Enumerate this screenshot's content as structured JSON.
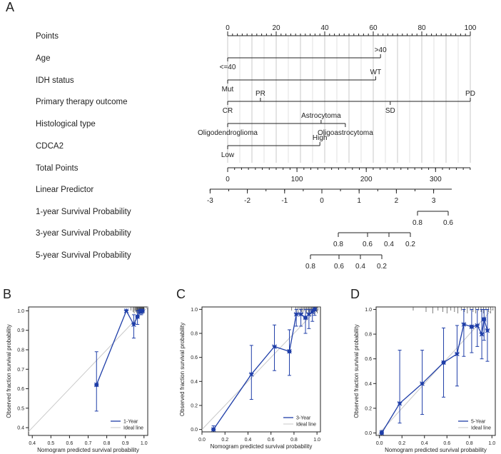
{
  "panel_labels": {
    "A": "A",
    "B": "B",
    "C": "C",
    "D": "D"
  },
  "chart_data": [
    {
      "type": "nomogram",
      "panel": "A",
      "rows": [
        {
          "label": "Points",
          "ticks": [
            {
              "v": 0,
              "t": "0"
            },
            {
              "v": 20,
              "t": "20"
            },
            {
              "v": 40,
              "t": "40"
            },
            {
              "v": 60,
              "t": "60"
            },
            {
              "v": 80,
              "t": "80"
            },
            {
              "v": 100,
              "t": "100"
            }
          ]
        },
        {
          "label": "Age",
          "levels": [
            {
              "pts": 0,
              "t": "<=40",
              "pos": "below"
            },
            {
              "pts": 63,
              "t": ">40",
              "pos": "above"
            }
          ]
        },
        {
          "label": "IDH status",
          "levels": [
            {
              "pts": 0,
              "t": "Mut",
              "pos": "below"
            },
            {
              "pts": 61,
              "t": "WT",
              "pos": "above"
            }
          ]
        },
        {
          "label": "Primary therapy outcome",
          "levels": [
            {
              "pts": 0,
              "t": "CR",
              "pos": "below"
            },
            {
              "pts": 13.5,
              "t": "PR",
              "pos": "above"
            },
            {
              "pts": 67,
              "t": "SD",
              "pos": "below"
            },
            {
              "pts": 100,
              "t": "PD",
              "pos": "above"
            }
          ]
        },
        {
          "label": "Histological type",
          "levels": [
            {
              "pts": 0,
              "t": "Oligodendroglioma",
              "pos": "below"
            },
            {
              "pts": 38.5,
              "t": "Astrocytoma",
              "pos": "above"
            },
            {
              "pts": 48.5,
              "t": "Oligoastrocytoma",
              "pos": "below"
            }
          ]
        },
        {
          "label": "CDCA2",
          "levels": [
            {
              "pts": 0,
              "t": "Low",
              "pos": "below"
            },
            {
              "pts": 38,
              "t": "High",
              "pos": "above"
            }
          ]
        },
        {
          "label": "Total Points",
          "ticks": [
            {
              "v": 0,
              "t": "0"
            },
            {
              "v": 100,
              "t": "100"
            },
            {
              "v": 200,
              "t": "200"
            },
            {
              "v": 300,
              "t": "300"
            }
          ]
        },
        {
          "label": "Linear Predictor",
          "ticks": [
            {
              "v": -3,
              "t": "-3"
            },
            {
              "v": -2,
              "t": "-2"
            },
            {
              "v": -1,
              "t": "-1"
            },
            {
              "v": 0,
              "t": "0"
            },
            {
              "v": 1,
              "t": "1"
            },
            {
              "v": 2,
              "t": "2"
            },
            {
              "v": 3,
              "t": "3"
            }
          ]
        },
        {
          "label": "1-year Survival Probability",
          "ticks": [
            {
              "v": 0.8,
              "t": "0.8"
            },
            {
              "v": 0.6,
              "t": "0.6"
            }
          ]
        },
        {
          "label": "3-year Survival Probability",
          "ticks": [
            {
              "v": 0.8,
              "t": "0.8"
            },
            {
              "v": 0.6,
              "t": "0.6"
            },
            {
              "v": 0.4,
              "t": "0.4"
            },
            {
              "v": 0.2,
              "t": "0.2"
            }
          ]
        },
        {
          "label": "5-year Survival Probability",
          "ticks": [
            {
              "v": 0.8,
              "t": "0.8"
            },
            {
              "v": 0.6,
              "t": "0.6"
            },
            {
              "v": 0.4,
              "t": "0.4"
            },
            {
              "v": 0.2,
              "t": "0.2"
            }
          ]
        }
      ]
    },
    {
      "type": "line",
      "panel": "B",
      "xlabel": "Nomogram predicted survival probability",
      "ylabel": "Observed fraction survival probability",
      "xlim": [
        0.38,
        1.02
      ],
      "ylim": [
        0.36,
        1.02
      ],
      "xticks": [
        "0.4",
        "0.5",
        "0.6",
        "0.7",
        "0.8",
        "0.9",
        "1.0"
      ],
      "yticks": [
        "0.4",
        "0.5",
        "0.6",
        "0.7",
        "0.8",
        "0.9",
        "1.0"
      ],
      "legend": {
        "position": "bottom-right",
        "entries": [
          "1-Year",
          "Ideal line"
        ]
      },
      "series": [
        {
          "name": "1-Year",
          "color": "#1f3ea8",
          "points": [
            {
              "x": 0.745,
              "y": 0.62,
              "lo": 0.485,
              "hi": 0.79
            },
            {
              "x": 0.905,
              "y": 1.0,
              "lo": 1.0,
              "hi": 1.0
            },
            {
              "x": 0.945,
              "y": 0.93,
              "lo": 0.86,
              "hi": 0.98
            },
            {
              "x": 0.965,
              "y": 0.97,
              "lo": 0.93,
              "hi": 1.0
            },
            {
              "x": 0.978,
              "y": 1.0,
              "lo": 0.99,
              "hi": 1.0
            },
            {
              "x": 0.985,
              "y": 0.995,
              "lo": 0.98,
              "hi": 1.0
            },
            {
              "x": 0.992,
              "y": 1.0,
              "lo": 1.0,
              "hi": 1.0
            }
          ]
        }
      ]
    },
    {
      "type": "line",
      "panel": "C",
      "xlabel": "Nomogram predicted survival probability",
      "ylabel": "Observed fraction survival probability",
      "xlim": [
        0.0,
        1.03
      ],
      "ylim": [
        -0.02,
        1.02
      ],
      "xticks": [
        "0.0",
        "0.2",
        "0.4",
        "0.6",
        "0.8",
        "1.0"
      ],
      "yticks": [
        "0.0",
        "0.2",
        "0.4",
        "0.6",
        "0.8",
        "1.0"
      ],
      "legend": {
        "position": "bottom-right",
        "entries": [
          "3-Year",
          "Ideal line"
        ]
      },
      "series": [
        {
          "name": "3-Year",
          "color": "#1f3ea8",
          "points": [
            {
              "x": 0.1,
              "y": 0.0,
              "lo": 0.0,
              "hi": 0.03
            },
            {
              "x": 0.43,
              "y": 0.46,
              "lo": 0.25,
              "hi": 0.7
            },
            {
              "x": 0.63,
              "y": 0.69,
              "lo": 0.49,
              "hi": 0.87
            },
            {
              "x": 0.76,
              "y": 0.65,
              "lo": 0.45,
              "hi": 0.83
            },
            {
              "x": 0.82,
              "y": 0.96,
              "lo": 0.86,
              "hi": 1.0
            },
            {
              "x": 0.86,
              "y": 0.96,
              "lo": 0.86,
              "hi": 1.0
            },
            {
              "x": 0.9,
              "y": 0.93,
              "lo": 0.8,
              "hi": 1.0
            },
            {
              "x": 0.93,
              "y": 0.96,
              "lo": 0.84,
              "hi": 1.0
            },
            {
              "x": 0.96,
              "y": 0.98,
              "lo": 0.9,
              "hi": 1.0
            },
            {
              "x": 0.98,
              "y": 1.0,
              "lo": 0.95,
              "hi": 1.0
            }
          ]
        }
      ]
    },
    {
      "type": "line",
      "panel": "D",
      "xlabel": "Nomogram predicted survival probability",
      "ylabel": "Observed fraction survival probability",
      "xlim": [
        -0.03,
        1.03
      ],
      "ylim": [
        -0.02,
        1.02
      ],
      "xticks": [
        "0.0",
        "0.2",
        "0.4",
        "0.6",
        "0.8",
        "1.0"
      ],
      "yticks": [
        "0.0",
        "0.2",
        "0.4",
        "0.6",
        "0.8",
        "1.0"
      ],
      "legend": {
        "position": "bottom-right",
        "entries": [
          "5-Year",
          "Ideal line"
        ]
      },
      "series": [
        {
          "name": "5-Year",
          "color": "#1f3ea8",
          "points": [
            {
              "x": 0.02,
              "y": 0.0,
              "lo": 0.0,
              "hi": 0.02
            },
            {
              "x": 0.18,
              "y": 0.24,
              "lo": 0.08,
              "hi": 0.67
            },
            {
              "x": 0.38,
              "y": 0.4,
              "lo": 0.15,
              "hi": 0.67
            },
            {
              "x": 0.57,
              "y": 0.57,
              "lo": 0.29,
              "hi": 0.85
            },
            {
              "x": 0.69,
              "y": 0.64,
              "lo": 0.38,
              "hi": 0.87
            },
            {
              "x": 0.75,
              "y": 0.88,
              "lo": 0.62,
              "hi": 1.0
            },
            {
              "x": 0.82,
              "y": 0.86,
              "lo": 0.65,
              "hi": 1.0
            },
            {
              "x": 0.87,
              "y": 0.87,
              "lo": 0.7,
              "hi": 1.0
            },
            {
              "x": 0.91,
              "y": 0.8,
              "lo": 0.6,
              "hi": 1.0
            },
            {
              "x": 0.93,
              "y": 0.92,
              "lo": 0.75,
              "hi": 1.0
            },
            {
              "x": 0.96,
              "y": 0.83,
              "lo": 0.58,
              "hi": 1.0
            }
          ]
        }
      ]
    }
  ]
}
